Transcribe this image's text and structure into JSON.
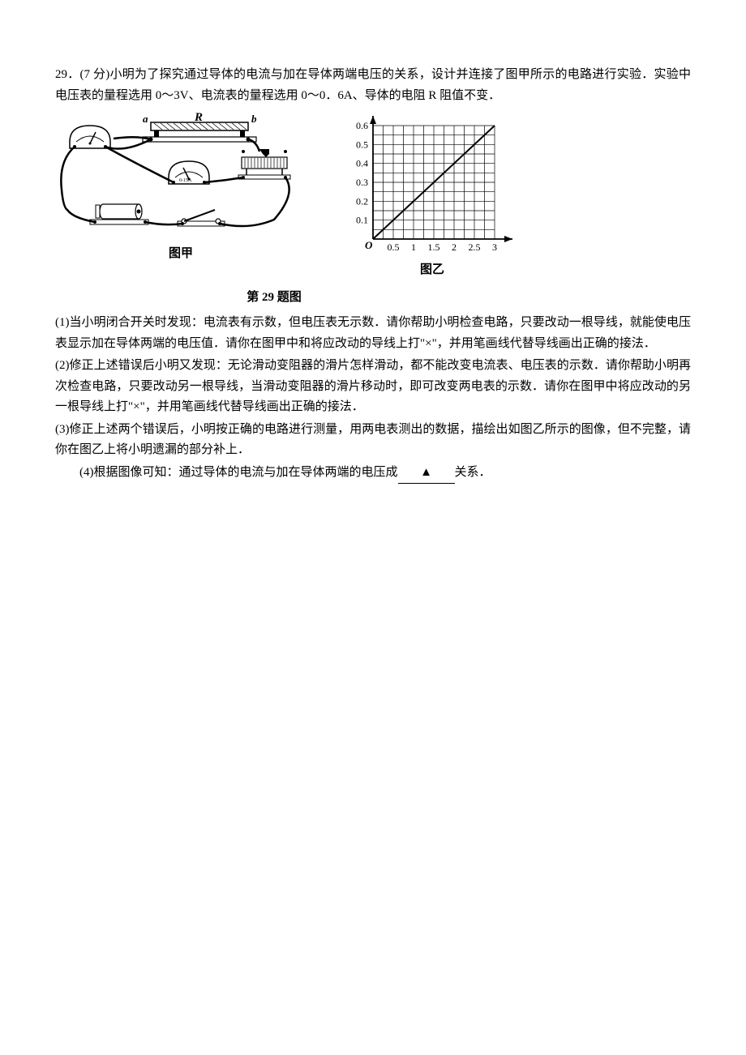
{
  "question": {
    "number": "29．",
    "points": "(7 分)",
    "intro_line1": "29．(7 分)小明为了探究通过导体的电流与加在导体两端电压的关系，设计并连接了图甲所示的电路进行实验．实验中电压表的量程选用 0～3V、电流表的量程选用 0～0．6A、导体的电阻 R 阻值不变．",
    "circuit": {
      "label_left": "a",
      "label_R": "R",
      "label_right": "b",
      "ammeter_scale": "0-15A"
    },
    "graph": {
      "type": "line",
      "origin_label": "O",
      "x_ticks": [
        "0.5",
        "1",
        "1.5",
        "2",
        "2.5",
        "3"
      ],
      "y_ticks": [
        "0.1",
        "0.2",
        "0.3",
        "0.4",
        "0.5",
        "0.6"
      ],
      "x_max": 3.0,
      "y_max": 0.6,
      "grid_count_x": 12,
      "grid_count_y": 12,
      "line_start": [
        0,
        0
      ],
      "line_end": [
        3,
        0.6
      ],
      "background_color": "#ffffff",
      "grid_color": "#000000",
      "line_color": "#000000",
      "axis_color": "#000000"
    },
    "caption_jia": "图甲",
    "caption_yi": "图乙",
    "main_caption": "第 29 题图",
    "part1": "(1)当小明闭合开关时发现：电流表有示数，但电压表无示数．请你帮助小明检查电路，只要改动一根导线，就能使电压表显示加在导体两端的电压值．请你在图甲中和将应改动的导线上打\"×\"，并用笔画线代替导线画出正确的接法．",
    "part2": "(2)修正上述错误后小明又发现：无论滑动变阻器的滑片怎样滑动，都不能改变电流表、电压表的示数．请你帮助小明再次检查电路，只要改动另一根导线，当滑动变阻器的滑片移动时，即可改变两电表的示数．请你在图甲中将应改动的另一根导线上打\"×\"，并用笔画线代替导线画出正确的接法．",
    "part3": "(3)修正上述两个错误后，小明按正确的电路进行测量，用两电表测出的数据，描绘出如图乙所示的图像，但不完整，请你在图乙上将小明遗漏的部分补上．",
    "part4_prefix": "(4)根据图像可知：通过导体的电流与加在导体两端的电压成",
    "part4_blank": "▲",
    "part4_suffix": "关系．"
  }
}
